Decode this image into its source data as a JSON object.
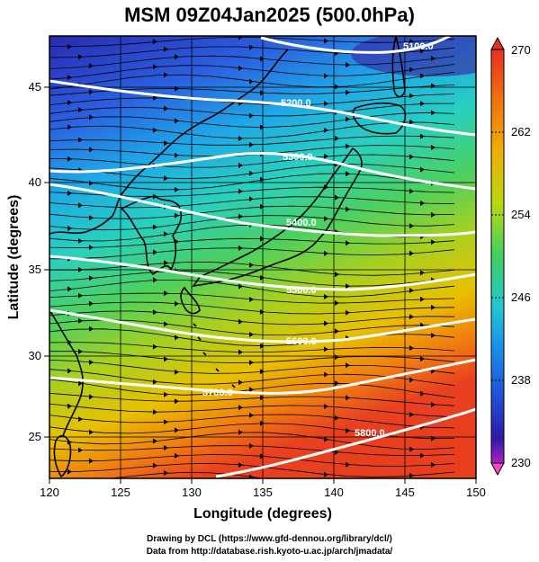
{
  "title": "MSM 09Z04Jan2025 (500.0hPa)",
  "xlabel": "Longitude (degrees)",
  "ylabel": "Latitude  (degrees)",
  "xticks": [
    "120",
    "125",
    "130",
    "135",
    "140",
    "145",
    "150"
  ],
  "yticks": [
    "25",
    "30",
    "35",
    "40",
    "45"
  ],
  "colorbar": {
    "labels": [
      "270",
      "262",
      "254",
      "246",
      "238",
      "230"
    ],
    "range": [
      230,
      270
    ],
    "colors": [
      "#ff44cc",
      "#1a1aa8",
      "#1f5fe0",
      "#1aa0e0",
      "#22d0c0",
      "#3ad060",
      "#9ad020",
      "#e0d000",
      "#f0a000",
      "#f06010",
      "#e83020"
    ]
  },
  "contours": [
    {
      "label": "5100.0"
    },
    {
      "label": "5200.0"
    },
    {
      "label": "5300.0"
    },
    {
      "label": "5400.0"
    },
    {
      "label": "5500.0"
    },
    {
      "label": "5600.0"
    },
    {
      "label": "5700.0"
    },
    {
      "label": "5800.0"
    }
  ],
  "credits": [
    "Drawing by DCL (https://www.gfd-dennou.org/library/dcl/)",
    "Data from http://database.rish.kyoto-u.ac.jp/arch/jmadata/"
  ]
}
